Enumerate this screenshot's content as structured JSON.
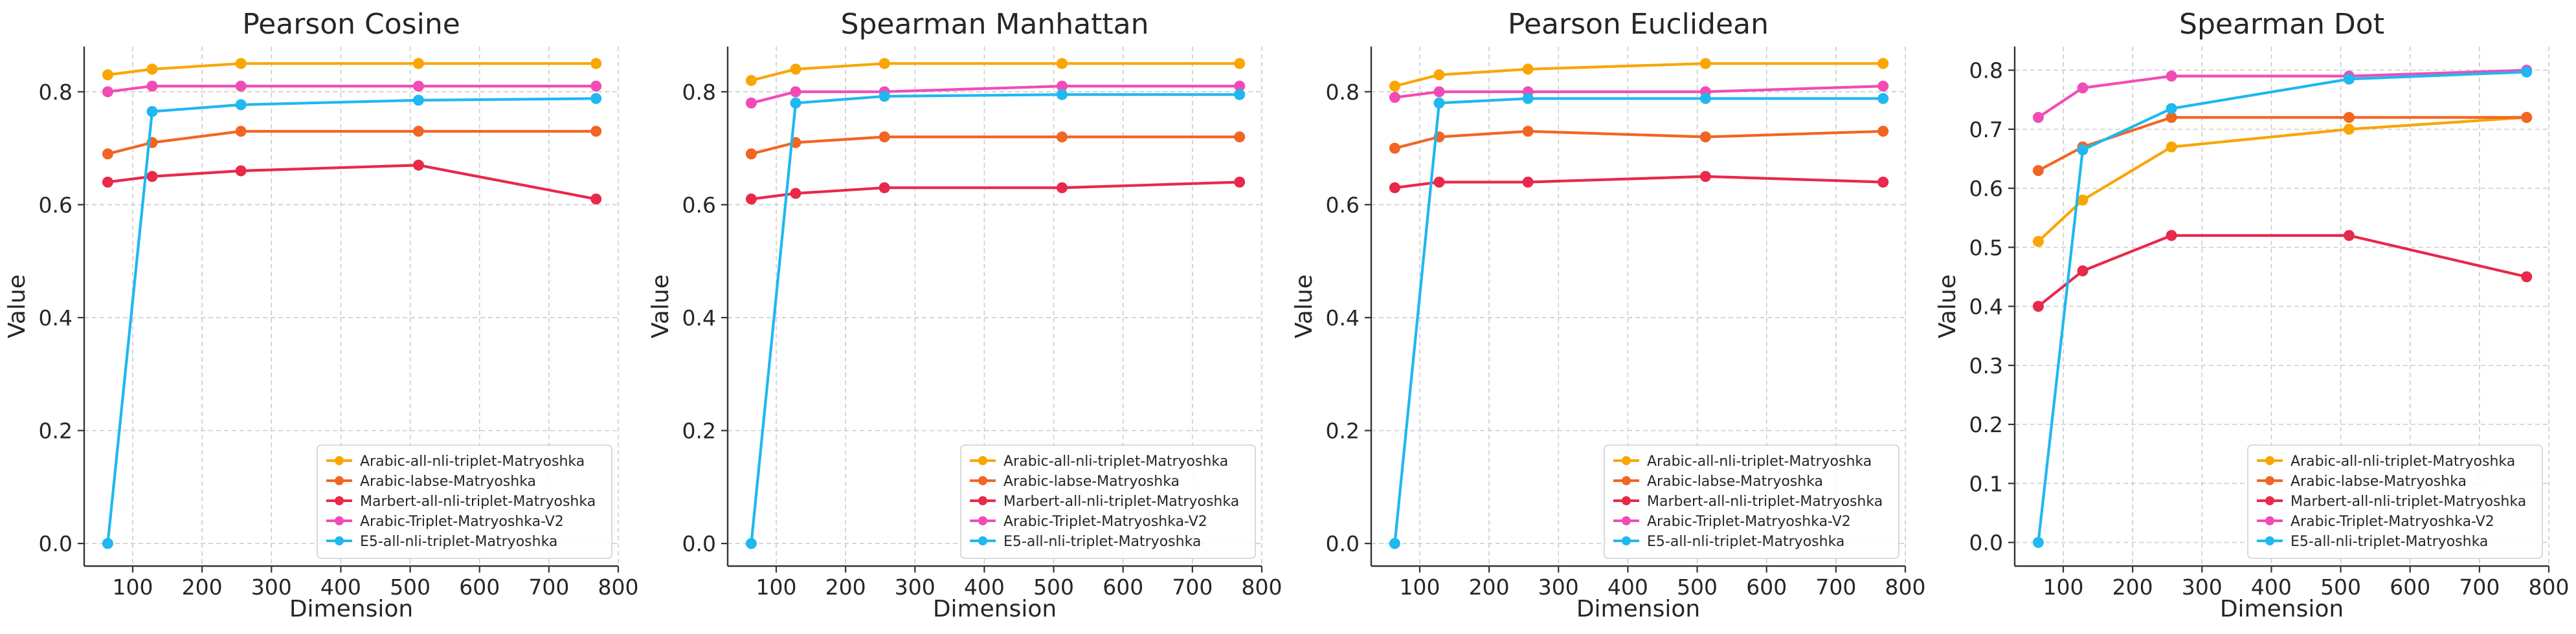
{
  "figure": {
    "series_colors": {
      "Arabic-all-nli-triplet-Matryoshka": "#f9a602",
      "Arabic-labse-Matryoshka": "#f26522",
      "Marbert-all-nli-triplet-Matryoshka": "#e8294a",
      "Arabic-Triplet-Matryoshka-V2": "#f14cb5",
      "E5-all-nli-triplet-Matryoshka": "#1fb8f0"
    },
    "legend_location": "lower-right",
    "marker": "circle"
  },
  "chart_data": [
    {
      "type": "line",
      "title": "Pearson Cosine",
      "xlabel": "Dimension",
      "ylabel": "Value",
      "xlim": [
        30,
        800
      ],
      "ylim": [
        -0.04,
        0.88
      ],
      "xticks": [
        100,
        200,
        300,
        400,
        500,
        600,
        700,
        800
      ],
      "yticks": [
        0.0,
        0.2,
        0.4,
        0.6,
        0.8
      ],
      "grid": true,
      "x": [
        64,
        128,
        256,
        512,
        768
      ],
      "series": [
        {
          "name": "Arabic-all-nli-triplet-Matryoshka",
          "values": [
            0.83,
            0.84,
            0.85,
            0.85,
            0.85
          ]
        },
        {
          "name": "Arabic-labse-Matryoshka",
          "values": [
            0.69,
            0.71,
            0.73,
            0.73,
            0.73
          ]
        },
        {
          "name": "Marbert-all-nli-triplet-Matryoshka",
          "values": [
            0.64,
            0.65,
            0.66,
            0.67,
            0.61
          ]
        },
        {
          "name": "Arabic-Triplet-Matryoshka-V2",
          "values": [
            0.8,
            0.81,
            0.81,
            0.81,
            0.81
          ]
        },
        {
          "name": "E5-all-nli-triplet-Matryoshka",
          "values": [
            0.0,
            0.765,
            0.777,
            0.785,
            0.788
          ]
        }
      ]
    },
    {
      "type": "line",
      "title": "Spearman Manhattan",
      "xlabel": "Dimension",
      "ylabel": "Value",
      "xlim": [
        30,
        800
      ],
      "ylim": [
        -0.04,
        0.88
      ],
      "xticks": [
        100,
        200,
        300,
        400,
        500,
        600,
        700,
        800
      ],
      "yticks": [
        0.0,
        0.2,
        0.4,
        0.6,
        0.8
      ],
      "grid": true,
      "x": [
        64,
        128,
        256,
        512,
        768
      ],
      "series": [
        {
          "name": "Arabic-all-nli-triplet-Matryoshka",
          "values": [
            0.82,
            0.84,
            0.85,
            0.85,
            0.85
          ]
        },
        {
          "name": "Arabic-labse-Matryoshka",
          "values": [
            0.69,
            0.71,
            0.72,
            0.72,
            0.72
          ]
        },
        {
          "name": "Marbert-all-nli-triplet-Matryoshka",
          "values": [
            0.61,
            0.62,
            0.63,
            0.63,
            0.64
          ]
        },
        {
          "name": "Arabic-Triplet-Matryoshka-V2",
          "values": [
            0.78,
            0.8,
            0.8,
            0.81,
            0.81
          ]
        },
        {
          "name": "E5-all-nli-triplet-Matryoshka",
          "values": [
            0.0,
            0.78,
            0.792,
            0.795,
            0.795
          ]
        }
      ]
    },
    {
      "type": "line",
      "title": "Pearson Euclidean",
      "xlabel": "Dimension",
      "ylabel": "Value",
      "xlim": [
        30,
        800
      ],
      "ylim": [
        -0.04,
        0.88
      ],
      "xticks": [
        100,
        200,
        300,
        400,
        500,
        600,
        700,
        800
      ],
      "yticks": [
        0.0,
        0.2,
        0.4,
        0.6,
        0.8
      ],
      "grid": true,
      "x": [
        64,
        128,
        256,
        512,
        768
      ],
      "series": [
        {
          "name": "Arabic-all-nli-triplet-Matryoshka",
          "values": [
            0.81,
            0.83,
            0.84,
            0.85,
            0.85
          ]
        },
        {
          "name": "Arabic-labse-Matryoshka",
          "values": [
            0.7,
            0.72,
            0.73,
            0.72,
            0.73
          ]
        },
        {
          "name": "Marbert-all-nli-triplet-Matryoshka",
          "values": [
            0.63,
            0.64,
            0.64,
            0.65,
            0.64
          ]
        },
        {
          "name": "Arabic-Triplet-Matryoshka-V2",
          "values": [
            0.79,
            0.8,
            0.8,
            0.8,
            0.81
          ]
        },
        {
          "name": "E5-all-nli-triplet-Matryoshka",
          "values": [
            0.0,
            0.78,
            0.788,
            0.788,
            0.788
          ]
        }
      ]
    },
    {
      "type": "line",
      "title": "Spearman Dot",
      "xlabel": "Dimension",
      "ylabel": "Value",
      "xlim": [
        30,
        800
      ],
      "ylim": [
        -0.04,
        0.84
      ],
      "xticks": [
        100,
        200,
        300,
        400,
        500,
        600,
        700,
        800
      ],
      "yticks": [
        0.0,
        0.1,
        0.2,
        0.3,
        0.4,
        0.5,
        0.6,
        0.7,
        0.8
      ],
      "grid": true,
      "x": [
        64,
        128,
        256,
        512,
        768
      ],
      "series": [
        {
          "name": "Arabic-all-nli-triplet-Matryoshka",
          "values": [
            0.51,
            0.58,
            0.67,
            0.7,
            0.72
          ]
        },
        {
          "name": "Arabic-labse-Matryoshka",
          "values": [
            0.63,
            0.67,
            0.72,
            0.72,
            0.72
          ]
        },
        {
          "name": "Marbert-all-nli-triplet-Matryoshka",
          "values": [
            0.4,
            0.46,
            0.52,
            0.52,
            0.45
          ]
        },
        {
          "name": "Arabic-Triplet-Matryoshka-V2",
          "values": [
            0.72,
            0.77,
            0.79,
            0.79,
            0.8
          ]
        },
        {
          "name": "E5-all-nli-triplet-Matryoshka",
          "values": [
            0.0,
            0.665,
            0.735,
            0.785,
            0.797
          ]
        }
      ]
    }
  ]
}
